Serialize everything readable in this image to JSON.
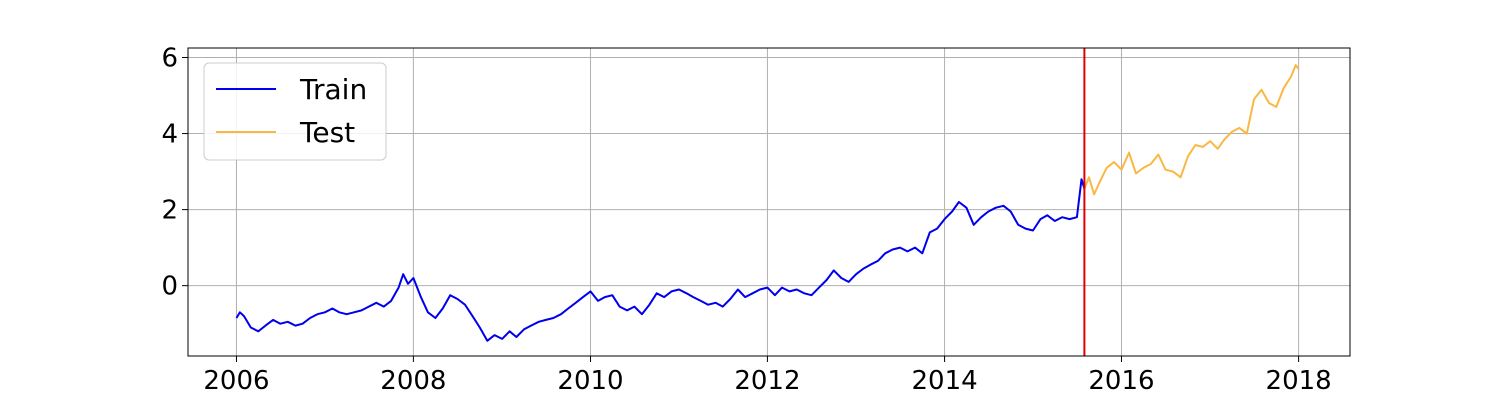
{
  "chart_data": {
    "type": "line",
    "title": "",
    "xlabel": "",
    "ylabel": "",
    "x_ticks": [
      "2006",
      "2008",
      "2010",
      "2012",
      "2014",
      "2016",
      "2018"
    ],
    "y_ticks": [
      "0",
      "2",
      "4",
      "6"
    ],
    "xlim": [
      "2005-06-15",
      "2018-08-01"
    ],
    "ylim": [
      -1.85,
      6.25
    ],
    "grid": true,
    "legend_position": "top-left",
    "split_date": "2015-08-01",
    "split_line_color": "#e00000",
    "series": [
      {
        "name": "Train",
        "color": "#0000ee",
        "points": [
          [
            "2006-01-01",
            -0.85
          ],
          [
            "2006-01-15",
            -0.7
          ],
          [
            "2006-02-01",
            -0.8
          ],
          [
            "2006-03-01",
            -1.1
          ],
          [
            "2006-04-01",
            -1.2
          ],
          [
            "2006-05-01",
            -1.05
          ],
          [
            "2006-06-01",
            -0.9
          ],
          [
            "2006-07-01",
            -1.0
          ],
          [
            "2006-08-01",
            -0.95
          ],
          [
            "2006-09-01",
            -1.05
          ],
          [
            "2006-10-01",
            -1.0
          ],
          [
            "2006-11-01",
            -0.85
          ],
          [
            "2006-12-01",
            -0.75
          ],
          [
            "2007-01-01",
            -0.7
          ],
          [
            "2007-02-01",
            -0.6
          ],
          [
            "2007-03-01",
            -0.7
          ],
          [
            "2007-04-01",
            -0.75
          ],
          [
            "2007-05-01",
            -0.7
          ],
          [
            "2007-06-01",
            -0.65
          ],
          [
            "2007-07-01",
            -0.55
          ],
          [
            "2007-08-01",
            -0.45
          ],
          [
            "2007-09-01",
            -0.55
          ],
          [
            "2007-10-01",
            -0.4
          ],
          [
            "2007-11-01",
            -0.05
          ],
          [
            "2007-11-20",
            0.3
          ],
          [
            "2007-12-10",
            0.05
          ],
          [
            "2008-01-01",
            0.2
          ],
          [
            "2008-02-01",
            -0.3
          ],
          [
            "2008-03-01",
            -0.7
          ],
          [
            "2008-04-01",
            -0.85
          ],
          [
            "2008-05-01",
            -0.6
          ],
          [
            "2008-06-01",
            -0.25
          ],
          [
            "2008-07-01",
            -0.35
          ],
          [
            "2008-08-01",
            -0.5
          ],
          [
            "2008-09-01",
            -0.8
          ],
          [
            "2008-10-01",
            -1.1
          ],
          [
            "2008-11-01",
            -1.45
          ],
          [
            "2008-12-01",
            -1.3
          ],
          [
            "2009-01-01",
            -1.4
          ],
          [
            "2009-02-01",
            -1.2
          ],
          [
            "2009-03-01",
            -1.35
          ],
          [
            "2009-04-01",
            -1.15
          ],
          [
            "2009-05-01",
            -1.05
          ],
          [
            "2009-06-01",
            -0.95
          ],
          [
            "2009-07-01",
            -0.9
          ],
          [
            "2009-08-01",
            -0.85
          ],
          [
            "2009-09-01",
            -0.75
          ],
          [
            "2009-10-01",
            -0.6
          ],
          [
            "2009-11-01",
            -0.45
          ],
          [
            "2009-12-01",
            -0.3
          ],
          [
            "2010-01-01",
            -0.15
          ],
          [
            "2010-02-01",
            -0.4
          ],
          [
            "2010-03-01",
            -0.3
          ],
          [
            "2010-04-01",
            -0.25
          ],
          [
            "2010-05-01",
            -0.55
          ],
          [
            "2010-06-01",
            -0.65
          ],
          [
            "2010-07-01",
            -0.55
          ],
          [
            "2010-08-01",
            -0.75
          ],
          [
            "2010-09-01",
            -0.5
          ],
          [
            "2010-10-01",
            -0.2
          ],
          [
            "2010-11-01",
            -0.3
          ],
          [
            "2010-12-01",
            -0.15
          ],
          [
            "2011-01-01",
            -0.1
          ],
          [
            "2011-02-01",
            -0.2
          ],
          [
            "2011-03-01",
            -0.3
          ],
          [
            "2011-04-01",
            -0.4
          ],
          [
            "2011-05-01",
            -0.5
          ],
          [
            "2011-06-01",
            -0.45
          ],
          [
            "2011-07-01",
            -0.55
          ],
          [
            "2011-08-01",
            -0.35
          ],
          [
            "2011-09-01",
            -0.1
          ],
          [
            "2011-10-01",
            -0.3
          ],
          [
            "2011-11-01",
            -0.2
          ],
          [
            "2011-12-01",
            -0.1
          ],
          [
            "2012-01-01",
            -0.05
          ],
          [
            "2012-02-01",
            -0.25
          ],
          [
            "2012-03-01",
            -0.05
          ],
          [
            "2012-04-01",
            -0.15
          ],
          [
            "2012-05-01",
            -0.1
          ],
          [
            "2012-06-01",
            -0.2
          ],
          [
            "2012-07-01",
            -0.25
          ],
          [
            "2012-08-01",
            -0.05
          ],
          [
            "2012-09-01",
            0.15
          ],
          [
            "2012-10-01",
            0.4
          ],
          [
            "2012-11-01",
            0.2
          ],
          [
            "2012-12-01",
            0.1
          ],
          [
            "2013-01-01",
            0.3
          ],
          [
            "2013-02-01",
            0.45
          ],
          [
            "2013-03-01",
            0.55
          ],
          [
            "2013-04-01",
            0.65
          ],
          [
            "2013-05-01",
            0.85
          ],
          [
            "2013-06-01",
            0.95
          ],
          [
            "2013-07-01",
            1.0
          ],
          [
            "2013-08-01",
            0.9
          ],
          [
            "2013-09-01",
            1.0
          ],
          [
            "2013-10-01",
            0.85
          ],
          [
            "2013-11-01",
            1.4
          ],
          [
            "2013-12-01",
            1.5
          ],
          [
            "2014-01-01",
            1.75
          ],
          [
            "2014-02-01",
            1.95
          ],
          [
            "2014-03-01",
            2.2
          ],
          [
            "2014-04-01",
            2.05
          ],
          [
            "2014-05-01",
            1.6
          ],
          [
            "2014-06-01",
            1.8
          ],
          [
            "2014-07-01",
            1.95
          ],
          [
            "2014-08-01",
            2.05
          ],
          [
            "2014-09-01",
            2.1
          ],
          [
            "2014-10-01",
            1.95
          ],
          [
            "2014-11-01",
            1.6
          ],
          [
            "2014-12-01",
            1.5
          ],
          [
            "2015-01-01",
            1.45
          ],
          [
            "2015-02-01",
            1.75
          ],
          [
            "2015-03-01",
            1.85
          ],
          [
            "2015-04-01",
            1.7
          ],
          [
            "2015-05-01",
            1.8
          ],
          [
            "2015-06-01",
            1.75
          ],
          [
            "2015-07-01",
            1.8
          ],
          [
            "2015-07-20",
            2.8
          ],
          [
            "2015-08-01",
            2.55
          ]
        ]
      },
      {
        "name": "Test",
        "color": "#f9b844",
        "points": [
          [
            "2015-08-01",
            2.55
          ],
          [
            "2015-08-20",
            2.85
          ],
          [
            "2015-09-10",
            2.4
          ],
          [
            "2015-10-01",
            2.7
          ],
          [
            "2015-11-01",
            3.1
          ],
          [
            "2015-12-01",
            3.25
          ],
          [
            "2016-01-01",
            3.05
          ],
          [
            "2016-02-01",
            3.5
          ],
          [
            "2016-03-01",
            2.95
          ],
          [
            "2016-04-01",
            3.1
          ],
          [
            "2016-05-01",
            3.2
          ],
          [
            "2016-06-01",
            3.45
          ],
          [
            "2016-07-01",
            3.05
          ],
          [
            "2016-08-01",
            3.0
          ],
          [
            "2016-09-01",
            2.85
          ],
          [
            "2016-10-01",
            3.4
          ],
          [
            "2016-11-01",
            3.7
          ],
          [
            "2016-12-01",
            3.65
          ],
          [
            "2017-01-01",
            3.8
          ],
          [
            "2017-02-01",
            3.6
          ],
          [
            "2017-03-01",
            3.85
          ],
          [
            "2017-04-01",
            4.05
          ],
          [
            "2017-05-01",
            4.15
          ],
          [
            "2017-06-01",
            4.0
          ],
          [
            "2017-07-01",
            4.9
          ],
          [
            "2017-08-01",
            5.15
          ],
          [
            "2017-09-01",
            4.8
          ],
          [
            "2017-10-01",
            4.7
          ],
          [
            "2017-11-01",
            5.2
          ],
          [
            "2017-12-01",
            5.5
          ],
          [
            "2017-12-20",
            5.8
          ],
          [
            "2018-01-01",
            5.7
          ]
        ]
      }
    ]
  }
}
